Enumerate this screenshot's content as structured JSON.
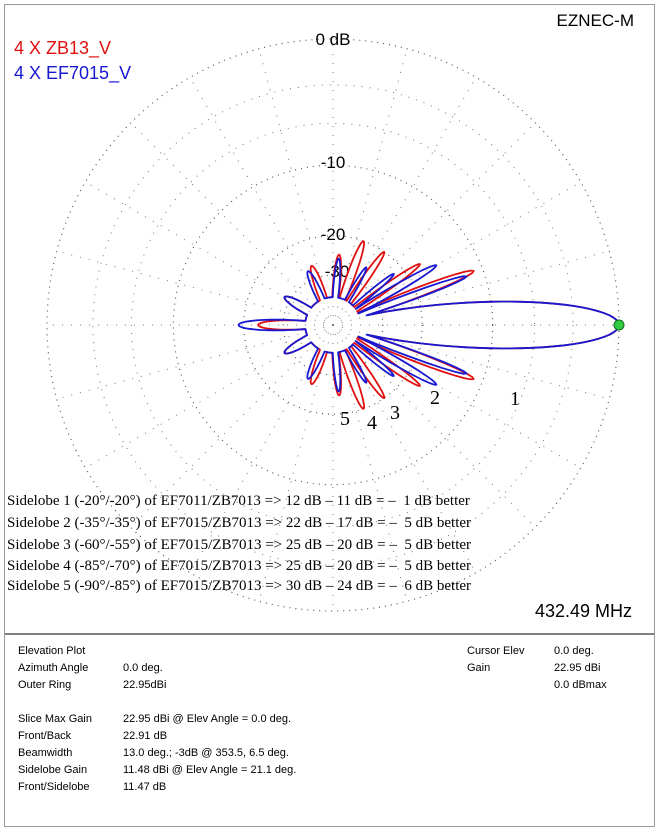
{
  "brand": "EZNEC-M",
  "legend": [
    {
      "label": "4 X ZB13_V",
      "color": "#e01010"
    },
    {
      "label": "4 X EF7015_V",
      "color": "#1818d0"
    }
  ],
  "ring_labels": [
    "0 dB",
    "-10",
    "-20",
    "-30"
  ],
  "sidelobe_markers": [
    "1",
    "2",
    "3",
    "4",
    "5"
  ],
  "notes": [
    "Sidelobe 1 (-20°/-20°) of EF7011/ZB7013 => 12 dB – 11 dB = –  1 dB better",
    "Sidelobe 2 (-35°/-35°) of EF7015/ZB7013 => 22 dB – 17 dB = –  5 dB better",
    "Sidelobe 3 (-60°/-55°) of EF7015/ZB7013 => 25 dB – 20 dB = –  5 dB better",
    "Sidelobe 4 (-85°/-70°) of EF7015/ZB7013 => 25 dB – 20 dB = –  5 dB better",
    "Sidelobe 5 (-90°/-85°) of EF7015/ZB7013 => 30 dB – 24 dB = –  6 dB better"
  ],
  "frequency": "432.49 MHz",
  "chart_data": {
    "type": "polar",
    "title": "Elevation Plot",
    "ring_levels_db": [
      0,
      -10,
      -20,
      -30
    ],
    "cursor": {
      "angle_deg": 0,
      "gain_dbi": 22.95,
      "color": "#2ecc40"
    },
    "series": [
      {
        "name": "4 X ZB13_V",
        "color": "#e01010",
        "lobes": [
          {
            "angle": 0,
            "db": 0,
            "width": 13
          },
          {
            "angle": 21,
            "db": -11,
            "width": 5
          },
          {
            "angle": 35,
            "db": -17,
            "width": 5
          },
          {
            "angle": 55,
            "db": -20,
            "width": 6
          },
          {
            "angle": 70,
            "db": -20,
            "width": 7
          },
          {
            "angle": 85,
            "db": -24,
            "width": 8
          },
          {
            "angle": -21,
            "db": -11,
            "width": 5
          },
          {
            "angle": -35,
            "db": -17,
            "width": 5
          },
          {
            "angle": -55,
            "db": -20,
            "width": 6
          },
          {
            "angle": -70,
            "db": -20,
            "width": 7
          },
          {
            "angle": -85,
            "db": -24,
            "width": 8
          },
          {
            "angle": 110,
            "db": -26,
            "width": 10
          },
          {
            "angle": -110,
            "db": -26,
            "width": 10
          },
          {
            "angle": 150,
            "db": -28,
            "width": 12
          },
          {
            "angle": -150,
            "db": -28,
            "width": 12
          },
          {
            "angle": 180,
            "db": -23,
            "width": 10
          }
        ]
      },
      {
        "name": "4 X EF7015_V",
        "color": "#1818d0",
        "lobes": [
          {
            "angle": 0,
            "db": 0,
            "width": 13
          },
          {
            "angle": 20,
            "db": -12,
            "width": 4
          },
          {
            "angle": 30,
            "db": -15,
            "width": 5
          },
          {
            "angle": 40,
            "db": -22,
            "width": 5
          },
          {
            "angle": 60,
            "db": -25,
            "width": 6
          },
          {
            "angle": 85,
            "db": -25,
            "width": 7
          },
          {
            "angle": -20,
            "db": -12,
            "width": 4
          },
          {
            "angle": -30,
            "db": -15,
            "width": 5
          },
          {
            "angle": -40,
            "db": -22,
            "width": 5
          },
          {
            "angle": -60,
            "db": -25,
            "width": 6
          },
          {
            "angle": -85,
            "db": -25,
            "width": 7
          },
          {
            "angle": 115,
            "db": -27,
            "width": 10
          },
          {
            "angle": -115,
            "db": -27,
            "width": 10
          },
          {
            "angle": 150,
            "db": -28,
            "width": 12
          },
          {
            "angle": -150,
            "db": -28,
            "width": 12
          },
          {
            "angle": 180,
            "db": -19,
            "width": 9
          }
        ]
      }
    ]
  },
  "info": {
    "left": [
      {
        "k": "Elevation Plot",
        "v": ""
      },
      {
        "k": "Azimuth Angle",
        "v": "0.0 deg."
      },
      {
        "k": "Outer Ring",
        "v": "22.95dBi"
      },
      {
        "k": "",
        "v": ""
      },
      {
        "k": "Slice Max Gain",
        "v": "22.95 dBi @ Elev Angle = 0.0 deg."
      },
      {
        "k": "Front/Back",
        "v": "22.91 dB"
      },
      {
        "k": "Beamwidth",
        "v": "13.0 deg.; -3dB @ 353.5, 6.5 deg."
      },
      {
        "k": "Sidelobe Gain",
        "v": "11.48 dBi @ Elev Angle = 21.1 deg."
      },
      {
        "k": "Front/Sidelobe",
        "v": "11.47 dB"
      }
    ],
    "right": [
      {
        "k": "Cursor Elev",
        "v": "0.0 deg."
      },
      {
        "k": "Gain",
        "v": "22.95 dBi"
      },
      {
        "k": "",
        "v": "0.0 dBmax"
      }
    ]
  }
}
